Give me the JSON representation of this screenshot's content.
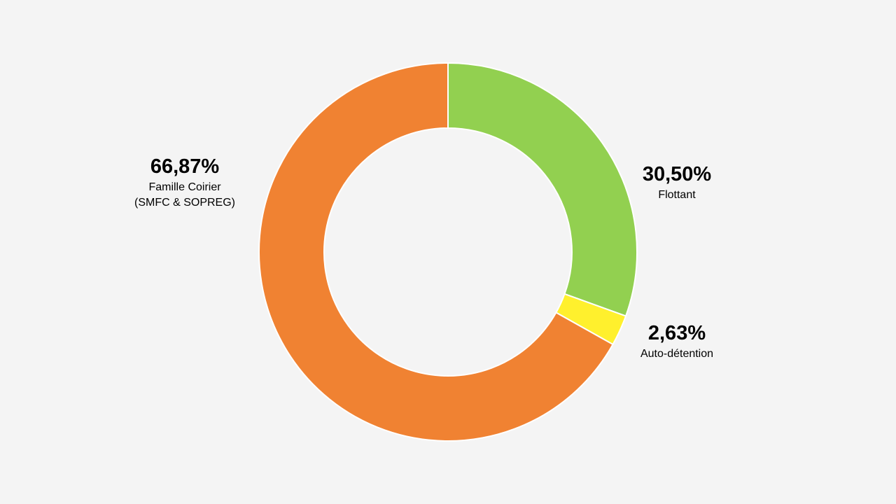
{
  "chart_data": {
    "type": "pie",
    "variant": "donut",
    "series": [
      {
        "name": "Flottant",
        "value": 30.5,
        "value_label": "30,50%",
        "label_lines": [
          "Flottant"
        ],
        "color": "#92d050"
      },
      {
        "name": "Auto-détention",
        "value": 2.63,
        "value_label": "2,63%",
        "label_lines": [
          "Auto-détention"
        ],
        "color": "#fff02d"
      },
      {
        "name": "Famille Coirier (SMFC & SOPREG)",
        "value": 66.87,
        "value_label": "66,87%",
        "label_lines": [
          "Famille Coirier",
          "(SMFC & SOPREG)"
        ],
        "color": "#f08232"
      }
    ],
    "start_angle": "12 o'clock",
    "direction": "clockwise",
    "legend": "none",
    "labels": "outside"
  },
  "colors": {
    "background": "#f4f4f4",
    "slice_border": "#ffffff"
  }
}
